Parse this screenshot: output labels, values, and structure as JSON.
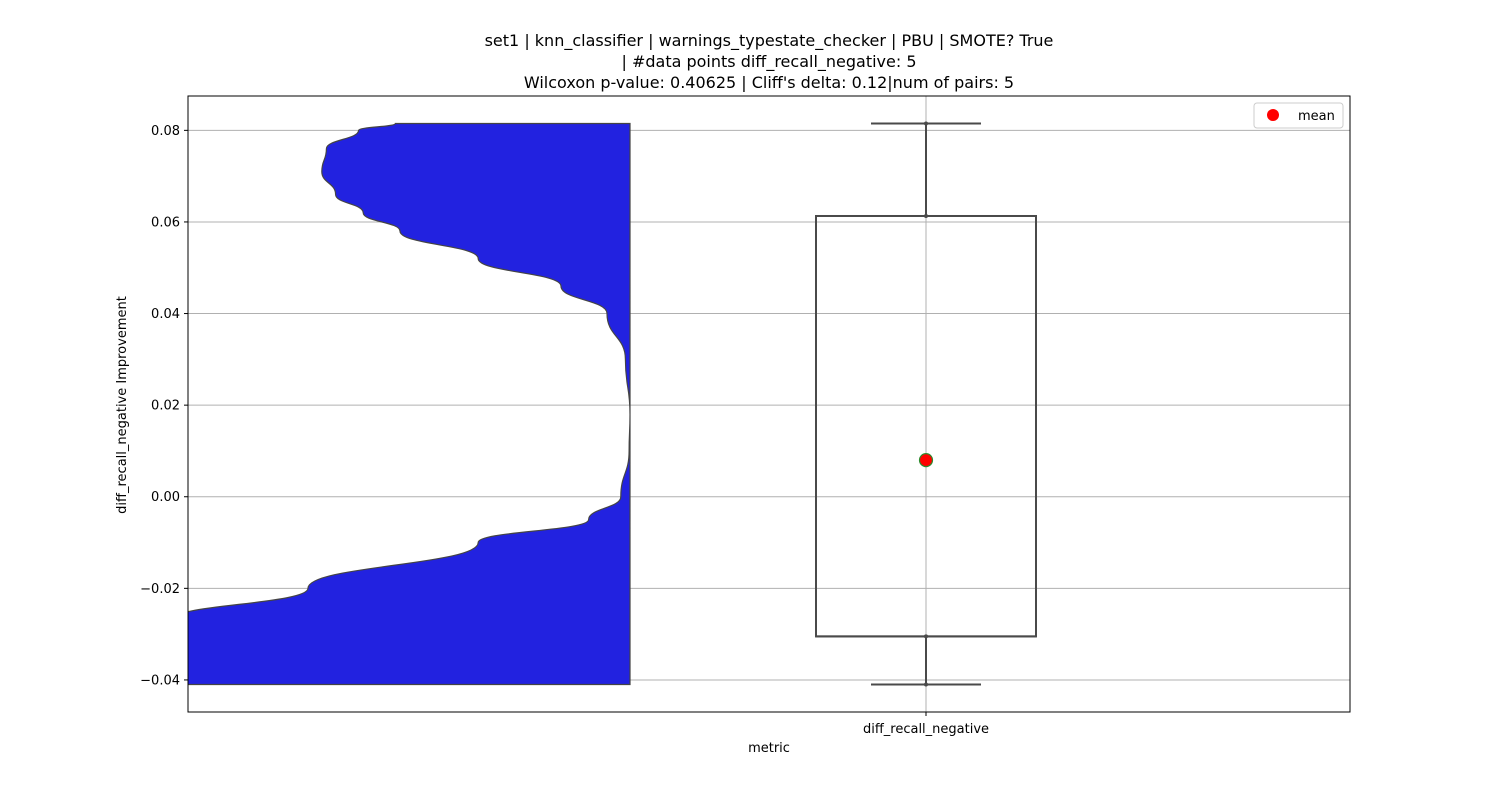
{
  "title": {
    "line1": "set1 | knn_classifier | warnings_typestate_checker | PBU | SMOTE? True",
    "line2": "| #data points diff_recall_negative: 5",
    "line3": "Wilcoxon p-value: 0.40625 | Cliff's delta: 0.12|num of pairs: 5"
  },
  "chart_data": {
    "type": "violin+box",
    "title": "set1 | knn_classifier | warnings_typestate_checker | PBU | SMOTE? True | #data points diff_recall_negative: 5 Wilcoxon p-value: 0.40625 | Cliff's delta: 0.12|num of pairs: 5",
    "xlabel": "metric",
    "ylabel": "diff_recall_negative Improvement",
    "categories": [
      "diff_recall_negative"
    ],
    "ylim": [
      -0.047,
      0.0875
    ],
    "yticks": [
      -0.04,
      -0.02,
      0.0,
      0.02,
      0.04,
      0.06,
      0.08
    ],
    "ytick_labels": [
      "−0.04",
      "−0.02",
      "0.00",
      "0.02",
      "0.04",
      "0.06",
      "0.08"
    ],
    "grid": true,
    "legend": {
      "placement": "top-right",
      "entries": [
        "mean"
      ]
    },
    "violin": {
      "color": "#2222e0",
      "edge_color": "#444444",
      "side": "left",
      "ymin": -0.041,
      "ymax": 0.0815,
      "density_profile": [
        [
          -0.041,
          1.0
        ],
        [
          -0.034,
          1.0
        ],
        [
          -0.027,
          1.0
        ],
        [
          -0.02,
          0.7
        ],
        [
          -0.01,
          0.33
        ],
        [
          -0.005,
          0.09
        ],
        [
          0.0,
          0.02
        ],
        [
          0.01,
          0.002
        ],
        [
          0.018,
          0.0
        ],
        [
          0.03,
          0.01
        ],
        [
          0.04,
          0.05
        ],
        [
          0.046,
          0.15
        ],
        [
          0.052,
          0.33
        ],
        [
          0.058,
          0.5
        ],
        [
          0.062,
          0.58
        ],
        [
          0.066,
          0.64
        ],
        [
          0.071,
          0.67
        ],
        [
          0.076,
          0.66
        ],
        [
          0.08,
          0.59
        ],
        [
          0.0815,
          0.51
        ]
      ]
    },
    "box": {
      "min": -0.041,
      "q1": -0.0305,
      "median": -0.0305,
      "q3": 0.0613,
      "max": 0.0815,
      "mean": 0.008,
      "mean_color": "#ff0000",
      "mean_edge_color": "#2e8b2e",
      "line_color": "#4a4a4a"
    }
  }
}
